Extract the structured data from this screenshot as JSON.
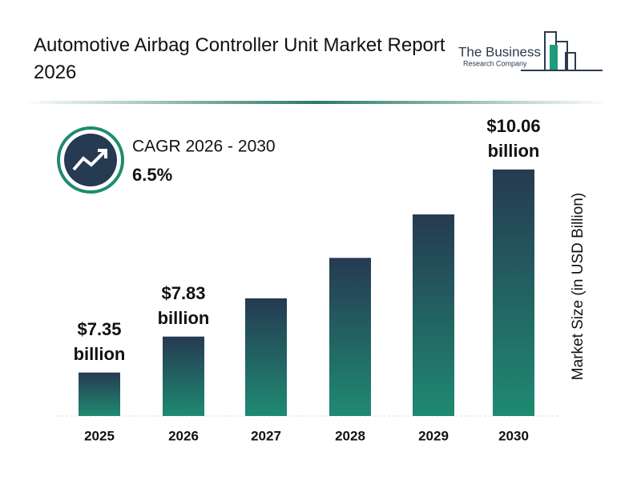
{
  "header": {
    "title": "Automotive Airbag Controller Unit Market Report 2026",
    "logo_line1": "The Business",
    "logo_line2": "Research Company"
  },
  "cagr": {
    "label": "CAGR 2026 - 2030",
    "value": "6.5%"
  },
  "chart_data": {
    "type": "bar",
    "y_axis_label": "Market Size (in USD Billion)",
    "categories": [
      "2025",
      "2026",
      "2027",
      "2028",
      "2029",
      "2030"
    ],
    "values": [
      7.35,
      7.83,
      8.34,
      8.88,
      9.46,
      10.06
    ],
    "value_labels": [
      "$7.35 billion",
      "$7.83 billion",
      null,
      null,
      null,
      "$10.06 billion"
    ],
    "colors": [
      "#263a52",
      "#1f8a72"
    ],
    "ylim": [
      6.77,
      10.72
    ]
  }
}
